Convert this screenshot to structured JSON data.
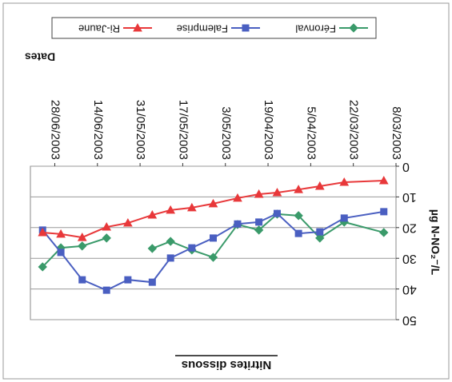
{
  "chart_data": {
    "type": "line",
    "title": "Nitrites dissous",
    "x_label": "Dates",
    "y_label": "µg N-NO₂⁻/L",
    "x": [
      "12/03/2003",
      "25/03/2003",
      "2/04/2003",
      "9/04/2003",
      "16/04/2003",
      "22/04/2003",
      "29/04/2003",
      "7/05/2003",
      "14/05/2003",
      "21/05/2003",
      "27/05/2003",
      "4/06/2003",
      "11/06/2003",
      "19/06/2003",
      "26/06/2003",
      "2/07/2003"
    ],
    "series": [
      {
        "name": "Féronval",
        "color": "#3a9a6a",
        "marker": "diamond",
        "values": [
          21.6,
          18.2,
          23.4,
          16.1,
          15.6,
          20.8,
          19.0,
          29.7,
          27.3,
          24.5,
          26.8,
          null,
          23.4,
          26.0,
          26.6,
          32.8
        ]
      },
      {
        "name": "Falemprise",
        "color": "#4a5fc1",
        "marker": "square",
        "values": [
          14.8,
          16.9,
          21.4,
          21.9,
          15.4,
          18.2,
          18.8,
          23.4,
          26.6,
          29.9,
          37.8,
          37.0,
          40.4,
          37.0,
          28.1,
          20.8
        ]
      },
      {
        "name": "Ri-Jaune",
        "color": "#e8383a",
        "marker": "triangle-down",
        "values": [
          4.7,
          5.2,
          6.5,
          7.6,
          8.6,
          9.1,
          10.4,
          12.2,
          13.5,
          14.3,
          15.9,
          18.5,
          19.8,
          23.2,
          22.1,
          21.6
        ]
      }
    ],
    "xlim": [
      "8/03/2003",
      "6/07/2003"
    ],
    "xticks": [
      "8/03/2003",
      "22/03/2003",
      "5/04/2003",
      "19/04/2003",
      "3/05/2003",
      "17/05/2003",
      "31/05/2003",
      "14/06/2003",
      "28/06/2003"
    ],
    "ylim": [
      0,
      50
    ],
    "yticks": [
      0,
      10,
      20,
      30,
      40,
      50
    ],
    "grid": true,
    "rotation": 180
  }
}
